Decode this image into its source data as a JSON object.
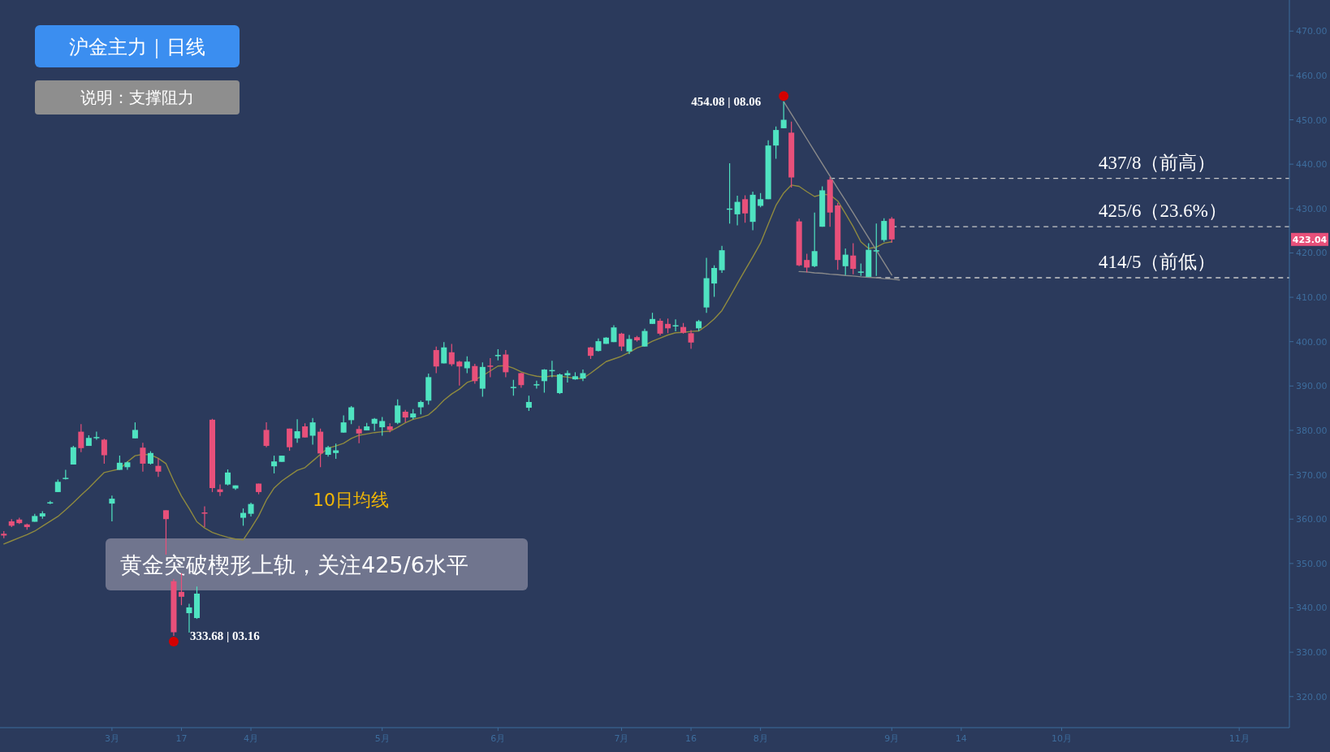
{
  "chart_data": {
    "type": "candlestick",
    "title": "沪金主力｜日线",
    "subtitle": "说明：支撑阻力",
    "categories": [
      null,
      null,
      null,
      null,
      null,
      null,
      null,
      null,
      null,
      null,
      null,
      null,
      null,
      null,
      "3月",
      null,
      null,
      null,
      null,
      null,
      null,
      null,
      null,
      "17",
      null,
      null,
      null,
      null,
      null,
      null,
      null,
      null,
      "4月",
      null,
      null,
      null,
      null,
      null,
      null,
      null,
      null,
      null,
      null,
      null,
      null,
      null,
      null,
      null,
      null,
      "5月",
      null,
      null,
      null,
      null,
      null,
      null,
      null,
      null,
      null,
      null,
      null,
      null,
      null,
      null,
      "6月",
      null,
      null,
      null,
      null,
      null,
      null,
      null,
      null,
      null,
      null,
      null,
      null,
      null,
      null,
      null,
      "7月",
      null,
      null,
      null,
      null,
      null,
      null,
      null,
      null,
      "16",
      null,
      null,
      null,
      null,
      null,
      null,
      null,
      null,
      "8月",
      null,
      null,
      null,
      null,
      null,
      null,
      null,
      null,
      null,
      null,
      null,
      null,
      null,
      null,
      null,
      null,
      "9月",
      null,
      null,
      null,
      null,
      null,
      null,
      null,
      null,
      "14",
      null,
      null,
      null,
      null,
      null,
      null,
      null,
      null,
      null,
      null,
      null,
      null,
      "10月",
      null,
      null,
      null,
      null,
      null,
      null,
      null,
      null,
      null,
      null,
      null,
      null,
      null,
      null,
      null,
      null,
      null,
      null,
      null,
      null,
      null,
      null,
      "11月",
      null,
      null,
      null,
      null,
      null,
      null
    ],
    "ohlc": [
      [
        356.7,
        357.3,
        355.7,
        356.3
      ],
      [
        359.5,
        360.0,
        358.2,
        358.5
      ],
      [
        359.9,
        360.3,
        358.9,
        359.1
      ],
      [
        358.8,
        359.0,
        357.6,
        358.2
      ],
      [
        359.4,
        361.2,
        359.4,
        360.7
      ],
      [
        360.6,
        361.8,
        360.1,
        361.3
      ],
      [
        363.6,
        364.1,
        363.4,
        363.8
      ],
      [
        366.1,
        368.9,
        366.1,
        368.4
      ],
      [
        369.1,
        371.1,
        368.9,
        369.3
      ],
      [
        372.3,
        376.5,
        372.3,
        376.2
      ],
      [
        379.7,
        381.4,
        375.1,
        376.0
      ],
      [
        376.5,
        378.9,
        376.5,
        378.3
      ],
      [
        378.3,
        379.7,
        377.9,
        378.5
      ],
      [
        377.9,
        378.1,
        372.5,
        374.4
      ],
      [
        363.5,
        365.3,
        359.5,
        364.6
      ],
      [
        371.1,
        374.3,
        371.1,
        372.7
      ],
      [
        371.7,
        373.0,
        371.1,
        372.8
      ],
      [
        378.2,
        381.8,
        378.2,
        380.1
      ],
      [
        376.1,
        377.2,
        370.7,
        372.5
      ],
      [
        372.5,
        375.3,
        372.3,
        374.9
      ],
      [
        372.0,
        373.7,
        369.5,
        370.7
      ],
      [
        362.0,
        362.0,
        352.0,
        360.0
      ],
      [
        346.0,
        346.5,
        333.68,
        334.5
      ],
      [
        343.6,
        347.8,
        340.6,
        342.5
      ],
      [
        338.8,
        340.9,
        334.4,
        340.1
      ],
      [
        337.7,
        344.8,
        337.5,
        343.2
      ],
      [
        361.5,
        362.9,
        358.2,
        361.3
      ],
      [
        382.4,
        382.6,
        366.1,
        367.0
      ],
      [
        366.7,
        367.8,
        365.2,
        366.1
      ],
      [
        367.8,
        371.2,
        367.6,
        370.5
      ],
      [
        366.9,
        367.6,
        366.6,
        367.6
      ],
      [
        360.3,
        362.4,
        358.5,
        361.4
      ],
      [
        361.2,
        363.7,
        360.6,
        363.4
      ],
      [
        368.0,
        368.0,
        365.6,
        366.1
      ],
      [
        380.1,
        381.8,
        376.2,
        376.5
      ],
      [
        371.9,
        374.3,
        370.3,
        373.0
      ],
      [
        372.9,
        374.3,
        372.9,
        374.3
      ],
      [
        380.4,
        380.4,
        375.4,
        376.2
      ],
      [
        378.2,
        382.5,
        377.2,
        379.8
      ],
      [
        380.9,
        381.6,
        378.4,
        378.4
      ],
      [
        378.8,
        382.8,
        376.8,
        381.8
      ],
      [
        379.7,
        380.4,
        371.7,
        374.8
      ],
      [
        374.5,
        376.5,
        374.1,
        376.2
      ],
      [
        374.9,
        377.0,
        373.6,
        375.5
      ],
      [
        379.5,
        383.4,
        379.5,
        381.8
      ],
      [
        382.3,
        385.5,
        381.4,
        385.2
      ],
      [
        380.3,
        381.0,
        377.1,
        379.3
      ],
      [
        380.0,
        381.7,
        380.0,
        380.9
      ],
      [
        381.5,
        382.8,
        379.9,
        382.6
      ],
      [
        380.7,
        383.0,
        378.8,
        382.1
      ],
      [
        380.9,
        381.6,
        379.6,
        380.1
      ],
      [
        381.7,
        387.0,
        381.4,
        385.6
      ],
      [
        384.2,
        384.6,
        381.8,
        382.9
      ],
      [
        382.9,
        384.8,
        382.5,
        383.8
      ],
      [
        385.2,
        386.7,
        383.6,
        386.4
      ],
      [
        386.7,
        392.8,
        385.8,
        392.0
      ],
      [
        398.1,
        398.9,
        392.9,
        394.4
      ],
      [
        395.1,
        399.9,
        395.1,
        398.7
      ],
      [
        397.6,
        399.5,
        394.5,
        394.9
      ],
      [
        395.5,
        395.7,
        390.1,
        394.4
      ],
      [
        394.0,
        396.7,
        392.9,
        395.5
      ],
      [
        394.5,
        395.0,
        390.5,
        391.1
      ],
      [
        389.4,
        395.3,
        387.6,
        394.3
      ],
      [
        394.6,
        396.3,
        392.0,
        394.4
      ],
      [
        396.8,
        398.3,
        395.8,
        397.0
      ],
      [
        397.1,
        398.1,
        392.0,
        393.1
      ],
      [
        389.6,
        391.4,
        387.8,
        389.8
      ],
      [
        392.9,
        393.0,
        389.6,
        390.2
      ],
      [
        385.1,
        387.8,
        384.4,
        386.4
      ],
      [
        390.2,
        391.2,
        389.4,
        390.4
      ],
      [
        391.1,
        393.8,
        388.5,
        393.7
      ],
      [
        393.4,
        395.7,
        392.0,
        393.6
      ],
      [
        388.4,
        392.8,
        388.2,
        392.6
      ],
      [
        392.4,
        393.5,
        390.8,
        392.9
      ],
      [
        391.5,
        393.1,
        391.4,
        392.2
      ],
      [
        391.7,
        393.7,
        391.1,
        392.9
      ],
      [
        398.7,
        398.8,
        396.1,
        396.8
      ],
      [
        397.9,
        400.7,
        397.8,
        400.1
      ],
      [
        399.5,
        401.0,
        399.5,
        400.9
      ],
      [
        399.9,
        403.7,
        399.9,
        403.2
      ],
      [
        401.8,
        402.0,
        397.9,
        398.9
      ],
      [
        397.8,
        401.5,
        397.2,
        400.6
      ],
      [
        401.0,
        401.3,
        400.0,
        400.3
      ],
      [
        398.9,
        402.9,
        398.9,
        402.4
      ],
      [
        404.0,
        406.5,
        404.0,
        405.1
      ],
      [
        404.7,
        405.2,
        401.4,
        401.8
      ],
      [
        404.0,
        405.2,
        401.9,
        403.0
      ],
      [
        403.5,
        405.0,
        402.3,
        403.7
      ],
      [
        403.3,
        404.2,
        401.8,
        402.0
      ],
      [
        401.9,
        402.6,
        398.4,
        399.8
      ],
      [
        403.0,
        404.9,
        402.4,
        404.6
      ],
      [
        407.7,
        418.9,
        406.5,
        414.3
      ],
      [
        413.1,
        417.2,
        410.1,
        416.6
      ],
      [
        416.1,
        421.6,
        415.5,
        420.6
      ],
      [
        429.8,
        440.2,
        426.6,
        430.0
      ],
      [
        428.7,
        432.9,
        426.2,
        431.5
      ],
      [
        432.1,
        433.0,
        426.8,
        428.9
      ],
      [
        427.0,
        433.8,
        425.1,
        433.1
      ],
      [
        430.6,
        433.5,
        430.3,
        432.1
      ],
      [
        432.1,
        445.4,
        432.1,
        444.2
      ],
      [
        444.2,
        448.5,
        441.2,
        447.7
      ],
      [
        448.1,
        454.08,
        448.1,
        450.0
      ],
      [
        447.1,
        449.6,
        434.7,
        437.0
      ],
      [
        427.1,
        427.7,
        417.0,
        417.2
      ],
      [
        418.4,
        419.8,
        415.6,
        416.7
      ],
      [
        417.0,
        429.1,
        416.8,
        420.4
      ],
      [
        425.9,
        435.0,
        425.9,
        434.1
      ],
      [
        436.5,
        437.1,
        425.9,
        429.1
      ],
      [
        430.7,
        431.3,
        416.2,
        418.4
      ],
      [
        417.0,
        421.0,
        415.0,
        419.6
      ],
      [
        419.4,
        422.2,
        415.2,
        416.4
      ],
      [
        415.6,
        417.6,
        414.8,
        415.8
      ],
      [
        414.6,
        422.2,
        414.6,
        420.7
      ],
      [
        420.4,
        426.6,
        414.8,
        420.6
      ],
      [
        422.9,
        427.8,
        422.5,
        427.2
      ],
      [
        427.7,
        428.1,
        422.3,
        423.04
      ],
      null,
      null,
      null,
      null,
      null,
      null,
      null,
      null,
      null,
      null,
      null,
      null,
      null,
      null,
      null,
      null,
      null,
      null,
      null,
      null,
      null,
      null,
      null,
      null,
      null,
      null,
      null,
      null,
      null,
      null,
      null,
      null,
      null,
      null,
      null,
      null,
      null,
      null,
      null,
      null,
      null,
      null,
      null,
      null,
      null,
      null,
      null,
      null,
      null,
      null,
      null
    ],
    "colors": [
      "#e8507a",
      "#e8507a",
      "#e8507a",
      "#e8507a",
      "#4fe3c1",
      "#4fe3c1",
      "#4fe3c1",
      "#4fe3c1",
      "#4fe3c1",
      "#4fe3c1",
      "#e8507a",
      "#4fe3c1",
      "#4fe3c1",
      "#e8507a",
      "#4fe3c1",
      "#4fe3c1",
      "#4fe3c1",
      "#4fe3c1",
      "#e8507a",
      "#4fe3c1",
      "#e8507a",
      "#e8507a",
      "#e8507a",
      "#e8507a",
      "#4fe3c1",
      "#4fe3c1",
      "#e8507a",
      "#e8507a",
      "#e8507a",
      "#4fe3c1",
      "#4fe3c1",
      "#4fe3c1",
      "#4fe3c1",
      "#e8507a",
      "#e8507a",
      "#4fe3c1",
      "#4fe3c1",
      "#e8507a",
      "#4fe3c1",
      "#e8507a",
      "#4fe3c1",
      "#e8507a",
      "#4fe3c1",
      "#4fe3c1",
      "#4fe3c1",
      "#4fe3c1",
      "#e8507a",
      "#4fe3c1",
      "#4fe3c1",
      "#4fe3c1",
      "#e8507a",
      "#4fe3c1",
      "#e8507a",
      "#4fe3c1",
      "#4fe3c1",
      "#4fe3c1",
      "#e8507a",
      "#4fe3c1",
      "#e8507a",
      "#e8507a",
      "#4fe3c1",
      "#e8507a",
      "#4fe3c1",
      "#e8507a",
      "#4fe3c1",
      "#e8507a",
      "#4fe3c1",
      "#e8507a",
      "#4fe3c1",
      "#4fe3c1",
      "#4fe3c1",
      "#4fe3c1",
      "#4fe3c1",
      "#4fe3c1",
      "#4fe3c1",
      "#4fe3c1",
      "#e8507a",
      "#4fe3c1",
      "#4fe3c1",
      "#4fe3c1",
      "#e8507a",
      "#4fe3c1",
      "#e8507a",
      "#4fe3c1",
      "#4fe3c1",
      "#e8507a",
      "#e8507a",
      "#4fe3c1",
      "#e8507a",
      "#e8507a",
      "#4fe3c1",
      "#4fe3c1",
      "#4fe3c1",
      "#4fe3c1",
      "#4fe3c1",
      "#4fe3c1",
      "#e8507a",
      "#4fe3c1",
      "#4fe3c1",
      "#4fe3c1",
      "#4fe3c1",
      "#4fe3c1",
      "#e8507a",
      "#e8507a",
      "#e8507a",
      "#4fe3c1",
      "#4fe3c1",
      "#e8507a",
      "#e8507a",
      "#4fe3c1",
      "#e8507a",
      "#4fe3c1",
      "#4fe3c1",
      "#4fe3c1",
      "#4fe3c1",
      "#e8507a",
      null,
      null,
      null,
      null,
      null,
      null,
      null,
      null,
      null,
      null,
      null,
      null,
      null,
      null,
      null,
      null,
      null,
      null,
      null,
      null,
      null,
      null,
      null,
      null,
      null,
      null,
      null,
      null,
      null,
      null,
      null,
      null,
      null,
      null,
      null,
      null,
      null,
      null,
      null,
      null,
      null,
      null,
      null,
      null,
      null,
      null,
      null,
      null,
      null,
      null,
      null
    ],
    "series": [
      {
        "type": "line",
        "name": "10日均线",
        "color": "#8f8a3f",
        "values": [
          354.4,
          355.1,
          355.8,
          356.5,
          357.3,
          358.4,
          359.5,
          360.6,
          362.1,
          363.7,
          365.4,
          367.0,
          368.8,
          370.5,
          370.9,
          371.3,
          372.9,
          374.3,
          374.6,
          374.5,
          373.7,
          372.5,
          368.6,
          365.2,
          362.4,
          359.4,
          358.0,
          357.0,
          356.4,
          355.9,
          355.5,
          355.3,
          357.9,
          360.7,
          364.3,
          367.0,
          368.6,
          369.8,
          371.0,
          371.6,
          373.1,
          374.6,
          376.0,
          376.5,
          377.1,
          378.2,
          378.9,
          379.2,
          379.5,
          379.7,
          379.8,
          380.7,
          381.7,
          382.5,
          382.9,
          383.5,
          385.0,
          386.8,
          388.2,
          389.3,
          390.8,
          391.4,
          392.3,
          393.4,
          394.5,
          394.6,
          394.0,
          393.2,
          392.6,
          392.2,
          392.0,
          392.3,
          392.2,
          392.0,
          391.7,
          391.7,
          392.9,
          394.2,
          395.5,
          396.1,
          396.7,
          397.6,
          398.6,
          399.2,
          400.1,
          400.8,
          401.5,
          402.0,
          402.1,
          402.3,
          402.4,
          403.6,
          405.1,
          407.0,
          410.0,
          413.1,
          416.1,
          419.1,
          422.2,
          426.5,
          430.7,
          433.5,
          435.3,
          435.0,
          433.8,
          432.7,
          433.2,
          433.1,
          431.7,
          428.9,
          425.9,
          422.5,
          421.0,
          421.3,
          422.2,
          422.5,
          null,
          null,
          null,
          null,
          null,
          null,
          null,
          null,
          null,
          null,
          null,
          null,
          null,
          null,
          null,
          null,
          null,
          null,
          null,
          null,
          null,
          null,
          null,
          null,
          null,
          null,
          null,
          null,
          null,
          null,
          null,
          null,
          null,
          null,
          null,
          null,
          null,
          null,
          null,
          null,
          null,
          null,
          null,
          null,
          null,
          null,
          null,
          null,
          null,
          null,
          null
        ]
      },
      {
        "type": "line",
        "color": "#8a8a8a",
        "values": [
          null,
          null,
          null,
          null,
          null,
          null,
          null,
          null,
          null,
          null,
          null,
          null,
          null,
          null,
          null,
          null,
          null,
          null,
          null,
          null,
          null,
          null,
          null,
          null,
          null,
          null,
          null,
          null,
          null,
          null,
          null,
          null,
          null,
          null,
          null,
          null,
          null,
          null,
          null,
          null,
          null,
          null,
          null,
          null,
          null,
          null,
          null,
          null,
          null,
          null,
          null,
          null,
          null,
          null,
          null,
          null,
          null,
          null,
          null,
          null,
          null,
          null,
          null,
          null,
          null,
          null,
          null,
          null,
          null,
          null,
          null,
          null,
          null,
          null,
          null,
          null,
          null,
          null,
          null,
          null,
          null,
          null,
          null,
          null,
          null,
          null,
          null,
          null,
          null,
          null,
          null,
          null,
          null,
          null,
          null,
          null,
          null,
          null,
          null,
          null,
          null,
          454.1,
          451.3,
          448.5,
          445.7,
          442.9,
          440.1,
          437.3,
          434.5,
          431.8,
          429.0,
          426.2,
          423.4,
          420.6,
          417.8,
          415.0,
          null,
          null,
          null,
          null,
          null,
          null,
          null,
          null,
          null,
          null,
          null,
          null,
          null,
          null,
          null,
          null,
          null,
          null,
          null,
          null,
          null,
          null,
          null,
          null,
          null,
          null,
          null,
          null,
          null,
          null,
          null,
          null,
          null,
          null,
          null,
          null,
          null,
          null,
          null,
          null,
          null,
          null,
          null,
          null,
          null,
          null,
          null,
          null,
          null,
          null,
          null
        ]
      },
      {
        "type": "line",
        "color": "#8a8a8a",
        "values": [
          null,
          null,
          null,
          null,
          null,
          null,
          null,
          null,
          null,
          null,
          null,
          null,
          null,
          null,
          null,
          null,
          null,
          null,
          null,
          null,
          null,
          null,
          null,
          null,
          null,
          null,
          null,
          null,
          null,
          null,
          null,
          null,
          null,
          null,
          null,
          null,
          null,
          null,
          null,
          null,
          null,
          null,
          null,
          null,
          null,
          null,
          null,
          null,
          null,
          null,
          null,
          null,
          null,
          null,
          null,
          null,
          null,
          null,
          null,
          null,
          null,
          null,
          null,
          null,
          null,
          null,
          null,
          null,
          null,
          null,
          null,
          null,
          null,
          null,
          null,
          null,
          null,
          null,
          null,
          null,
          null,
          null,
          null,
          null,
          null,
          null,
          null,
          null,
          null,
          null,
          null,
          null,
          null,
          null,
          null,
          null,
          null,
          null,
          null,
          null,
          null,
          null,
          null,
          415.8,
          415.7,
          415.5,
          415.4,
          415.2,
          415.1,
          414.9,
          414.8,
          414.6,
          414.5,
          414.4,
          414.2,
          414.1,
          413.9,
          null,
          null,
          null,
          null,
          null,
          null,
          null,
          null,
          null,
          null,
          null,
          null,
          null,
          null,
          null,
          null,
          null,
          null,
          null,
          null,
          null,
          null,
          null,
          null,
          null,
          null,
          null,
          null,
          null,
          null,
          null,
          null,
          null,
          null,
          null,
          null,
          null,
          null,
          null,
          null,
          null,
          null,
          null,
          null,
          null,
          null,
          null,
          null,
          null,
          null
        ]
      }
    ],
    "ylim": [
      313,
      477
    ],
    "yticks": [
      {
        "value": 320,
        "label": "320.00"
      },
      {
        "value": 330,
        "label": "330.00"
      },
      {
        "value": 340,
        "label": "340.00"
      },
      {
        "value": 350,
        "label": "350.00"
      },
      {
        "value": 360,
        "label": "360.00"
      },
      {
        "value": 370,
        "label": "370.00"
      },
      {
        "value": 380,
        "label": "380.00"
      },
      {
        "value": 390,
        "label": "390.00"
      },
      {
        "value": 400,
        "label": "400.00"
      },
      {
        "value": 410,
        "label": "410.00"
      },
      {
        "value": 420,
        "label": "420.00"
      },
      {
        "value": 430,
        "label": "430.00"
      },
      {
        "value": 440,
        "label": "440.00"
      },
      {
        "value": 450,
        "label": "450.00"
      },
      {
        "value": 460,
        "label": "460.00"
      },
      {
        "value": 470,
        "label": "470.00"
      }
    ],
    "ref_lines": [
      {
        "axis": "y",
        "value": 436.8,
        "label": "437/8（前高）",
        "color": "#c8c8c8",
        "line_style": "dashed"
      },
      {
        "axis": "y",
        "value": 425.9,
        "label": "425/6（23.6%）",
        "color": "#c8c8c8",
        "line_style": "dashed"
      },
      {
        "axis": "y",
        "value": 414.4,
        "label": "414/5（前低）",
        "color": "#c8c8c8",
        "line_style": "dashed"
      }
    ],
    "annotations": [
      "454.08 | 08.06",
      "333.68 | 03.16",
      "423.04",
      "黄金突破楔形上轨，关注425/6水平"
    ]
  }
}
